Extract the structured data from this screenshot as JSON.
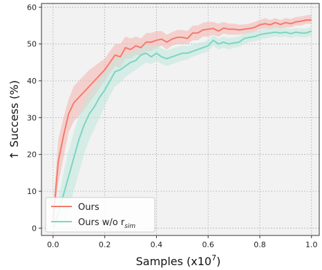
{
  "chart_data": {
    "type": "line",
    "xlabel": "Samples (x10",
    "xlabel_sup": "7",
    "xlabel_close": ")",
    "ylabel": "↑ Success (%)",
    "xlim": [
      -0.045,
      1.03
    ],
    "ylim": [
      -2,
      61
    ],
    "xticks": [
      0.0,
      0.2,
      0.4,
      0.6,
      0.8,
      1.0
    ],
    "xtick_labels": [
      "0.0",
      "0.2",
      "0.4",
      "0.6",
      "0.8",
      "1.0"
    ],
    "yticks": [
      0,
      10,
      20,
      30,
      40,
      50,
      60
    ],
    "ytick_labels": [
      "0",
      "10",
      "20",
      "30",
      "40",
      "50",
      "60"
    ],
    "grid": true,
    "legend_position": "lower-left",
    "series": [
      {
        "name": "Ours",
        "color": "#f4796b",
        "band_color": "#f4b5ae",
        "x": [
          0.0,
          0.02,
          0.04,
          0.06,
          0.08,
          0.1,
          0.12,
          0.14,
          0.16,
          0.18,
          0.2,
          0.22,
          0.24,
          0.26,
          0.28,
          0.3,
          0.32,
          0.34,
          0.36,
          0.38,
          0.4,
          0.42,
          0.44,
          0.46,
          0.48,
          0.5,
          0.52,
          0.54,
          0.56,
          0.58,
          0.6,
          0.62,
          0.64,
          0.66,
          0.68,
          0.7,
          0.72,
          0.74,
          0.76,
          0.78,
          0.8,
          0.82,
          0.84,
          0.86,
          0.88,
          0.9,
          0.92,
          0.94,
          0.96,
          0.98,
          1.0
        ],
        "y": [
          2,
          18,
          25,
          31,
          34,
          35.5,
          37,
          38.5,
          40,
          41.5,
          43,
          45,
          47,
          46.5,
          49,
          48.5,
          49.5,
          49,
          50.5,
          50.5,
          51,
          51.3,
          50.5,
          51.3,
          51.8,
          51.8,
          51.5,
          53,
          53,
          53.8,
          54,
          54.2,
          53.5,
          54.3,
          54,
          54,
          53.8,
          54,
          54.2,
          54.5,
          55.2,
          55.5,
          55.2,
          55.8,
          55.3,
          55.8,
          55.5,
          56,
          56.2,
          56.5,
          56.5
        ],
        "lower": [
          0,
          12,
          19,
          26,
          29,
          30.5,
          32,
          34,
          36,
          38,
          40,
          42,
          44,
          43.5,
          46,
          46,
          47,
          47,
          48,
          48,
          49,
          49.5,
          48.5,
          49.5,
          50,
          50,
          50,
          51,
          51,
          52,
          52,
          52.5,
          52,
          52.8,
          52.5,
          52.5,
          52.5,
          52.8,
          53,
          53.3,
          54,
          54.2,
          54,
          54.5,
          54.2,
          54.5,
          54.5,
          55,
          55,
          55.5,
          55.5
        ],
        "upper": [
          5,
          24,
          30,
          35,
          38.5,
          40,
          41.5,
          43,
          44,
          45,
          46,
          48,
          50,
          50,
          52,
          51.5,
          52,
          51.5,
          53,
          53,
          53.5,
          53.5,
          52.5,
          53.2,
          53.8,
          53.8,
          53.5,
          55,
          55,
          55.8,
          56,
          56,
          55.5,
          56,
          55.5,
          55.5,
          55.2,
          55.3,
          55.5,
          56,
          56.5,
          57,
          56.5,
          57,
          56.5,
          57,
          56.8,
          57.3,
          57.5,
          57.8,
          58
        ]
      },
      {
        "name": "Ours w/o r",
        "name_sub": "sim",
        "color": "#7fd3c1",
        "band_color": "#bde9dd",
        "x": [
          0.0,
          0.02,
          0.04,
          0.06,
          0.08,
          0.1,
          0.12,
          0.14,
          0.16,
          0.18,
          0.2,
          0.22,
          0.24,
          0.26,
          0.28,
          0.3,
          0.32,
          0.34,
          0.36,
          0.38,
          0.4,
          0.42,
          0.44,
          0.46,
          0.48,
          0.5,
          0.52,
          0.54,
          0.56,
          0.58,
          0.6,
          0.62,
          0.64,
          0.66,
          0.68,
          0.7,
          0.72,
          0.74,
          0.76,
          0.78,
          0.8,
          0.82,
          0.84,
          0.86,
          0.88,
          0.9,
          0.92,
          0.94,
          0.96,
          0.98,
          1.0
        ],
        "y": [
          0,
          4,
          9,
          14,
          19,
          24,
          28,
          31,
          33,
          35.5,
          37.5,
          40,
          42.5,
          43,
          44,
          45,
          45.5,
          47,
          47.5,
          46.5,
          47.5,
          46.5,
          46,
          46.5,
          47,
          47.5,
          47.5,
          48,
          48.5,
          49,
          49.5,
          51,
          50,
          50.5,
          50,
          50.3,
          50.5,
          51.5,
          51.8,
          52,
          52.5,
          52.8,
          53,
          53.2,
          53,
          53.2,
          52.8,
          53.2,
          53,
          53,
          53.5
        ],
        "lower": [
          0,
          0,
          2,
          5,
          10,
          15,
          20,
          24,
          27,
          30,
          33,
          36,
          38.5,
          39.5,
          41,
          42,
          43,
          44,
          45,
          44.5,
          45.5,
          44.5,
          44,
          44.5,
          45,
          45.5,
          45.8,
          46.5,
          47,
          47.5,
          48,
          49.5,
          48.5,
          49,
          48.5,
          49,
          49.2,
          50,
          50.5,
          50.7,
          51.2,
          51.5,
          51.7,
          52,
          51.8,
          52,
          51.6,
          52,
          51.8,
          51.8,
          52.2
        ],
        "upper": [
          1,
          8,
          15,
          21,
          26,
          30.5,
          34,
          36.5,
          38.5,
          40.5,
          42,
          44,
          46,
          46.5,
          47,
          48,
          48,
          49.5,
          50,
          49,
          49.8,
          48.8,
          48.2,
          48.8,
          49.2,
          49.5,
          49.4,
          49.8,
          50.2,
          50.5,
          51,
          52.5,
          51.5,
          52,
          51.6,
          51.8,
          52,
          53,
          53.2,
          53.4,
          53.8,
          54.1,
          54.3,
          54.5,
          54.2,
          54.4,
          54,
          54.4,
          54.2,
          54.2,
          54.8
        ]
      }
    ]
  }
}
